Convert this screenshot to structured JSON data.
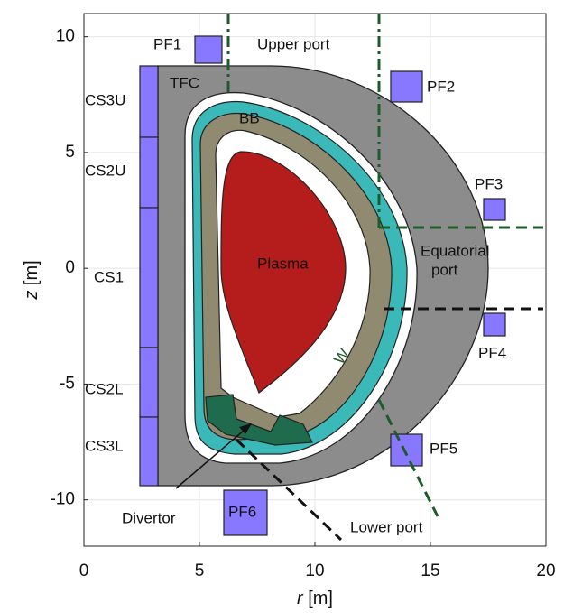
{
  "axes": {
    "xlabel": {
      "symbol": "r",
      "unit": "[m]"
    },
    "ylabel": {
      "symbol": "z",
      "unit": "[m]"
    },
    "xlim": [
      0,
      20
    ],
    "ylim": [
      -12,
      11
    ],
    "xticks": [
      0,
      5,
      10,
      15,
      20
    ],
    "yticks": [
      -10,
      -5,
      0,
      5,
      10
    ],
    "grid": true
  },
  "labels": {
    "pf1": "PF1",
    "upper_port": "Upper port",
    "pf2": "PF2",
    "tfc": "TFC",
    "bb": "BB",
    "pf3": "PF3",
    "equatorial": "Equatorial",
    "port": "port",
    "plasma": "Plasma",
    "cs3u": "CS3U",
    "cs2u": "CS2U",
    "cs1": "CS1",
    "cs2l": "CS2L",
    "cs3l": "CS3L",
    "pf4": "PF4",
    "w": "W",
    "pf5": "PF5",
    "divertor": "Divertor",
    "pf6": "PF6",
    "lower_port": "Lower port"
  }
}
